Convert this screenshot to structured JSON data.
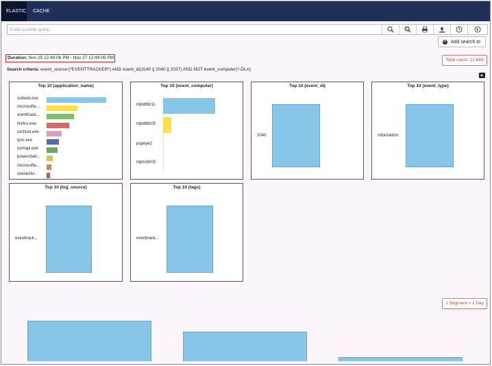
{
  "nav": {
    "tabs": [
      {
        "label": "ELASTIC"
      },
      {
        "label": "CACHE"
      }
    ]
  },
  "search": {
    "placeholder": "Enter Lucene query...",
    "value": ""
  },
  "toolbar": {
    "icons": [
      "search-icon",
      "zoom-out-icon",
      "print-icon",
      "upload-icon",
      "clock-icon",
      "back-icon"
    ]
  },
  "add_search": {
    "label": "Add search to"
  },
  "duration": {
    "label": "Duration:",
    "value": " Nov 25 12:49:06 PM -  Nov 27 12:49:06 PM"
  },
  "total_count": {
    "label": "Total count: 12,683"
  },
  "criteria": {
    "label": "Search criteria:",
    "value": " event_source:(*EVENTTRACKER*) AND event_id(3240 || 2040 || 2037) AND NOT event_computer(*-DLA)"
  },
  "panels": [
    {
      "title": "Top 10 (application_name)",
      "type": "hbar",
      "categories": [
        "outlook.exe",
        "microsofte...",
        "eventtrack...",
        "firefox.exe",
        "svchost.exe",
        "lync.exe",
        "ucmapi.exe",
        "powershell...",
        "microsofte...",
        "useractivi..."
      ],
      "values": [
        100,
        52,
        46,
        38,
        25,
        21,
        18,
        10,
        8,
        6
      ],
      "colors": [
        "#87c6e8",
        "#fde047",
        "#7fbf6b",
        "#d86a6a",
        "#d9a0c0",
        "#5a6aa8",
        "#6aa86a",
        "#c8c86a",
        "#d08a5a",
        "#c85a5a"
      ]
    },
    {
      "title": "Top 10 (event_computer)",
      "type": "hbar",
      "categories": [
        "ntpldtblr11",
        "ntpldtblr05",
        "popeye2",
        "ntplsrblr03"
      ],
      "values": [
        100,
        16,
        0,
        0
      ],
      "colors": [
        "#87c6e8",
        "#fde047",
        "#7fbf6b",
        "#d86a6a"
      ]
    },
    {
      "title": "Top 10 (event_id)",
      "type": "vbar",
      "categories": [
        "2040"
      ],
      "values": [
        100
      ]
    },
    {
      "title": "Top 10 (event_type)",
      "type": "vbar",
      "categories": [
        "Information"
      ],
      "values": [
        100
      ]
    },
    {
      "title": "Top 10 (log_source)",
      "type": "vbar",
      "categories": [
        "eventtrack..."
      ],
      "values": [
        100
      ]
    },
    {
      "title": "Top 10 (tags)",
      "type": "vbar",
      "categories": [
        "eventtrack..."
      ],
      "values": [
        100
      ]
    }
  ],
  "segment": {
    "label": "1 Segment = 1 Day"
  },
  "timeline": {
    "values": [
      100,
      73,
      10
    ]
  }
}
